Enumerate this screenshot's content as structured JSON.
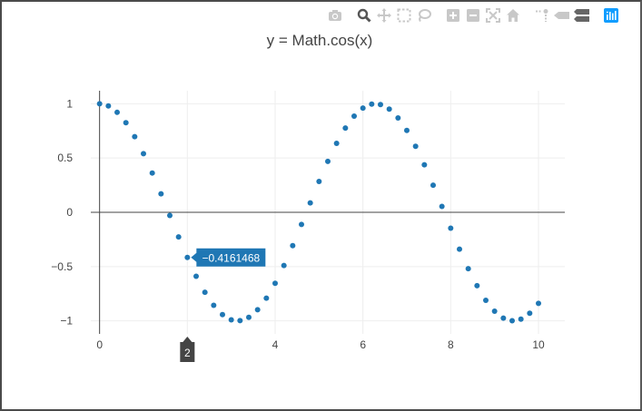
{
  "modebar": {
    "icons": [
      "camera-icon",
      "zoom-icon",
      "pan-icon",
      "box-select-icon",
      "lasso-select-icon",
      "zoom-in-icon",
      "zoom-out-icon",
      "autoscale-icon",
      "reset-axes-icon",
      "spike-lines-icon",
      "hover-closest-icon",
      "hover-compare-icon",
      "plotly-logo-icon"
    ],
    "active": "zoom-icon"
  },
  "colors": {
    "marker": "#1f77b4",
    "grid": "#eeeeee",
    "zeroline": "#444444",
    "hover_label_bg": "#1f77b4",
    "x_spike_label_bg": "#444444"
  },
  "hover": {
    "y_label": "−0.4161468",
    "x_label": "2",
    "point_x": 2
  },
  "chart_data": {
    "type": "scatter",
    "title": "y = Math.cos(x)",
    "xlabel": "",
    "ylabel": "",
    "xlim": [
      -0.2,
      10.6
    ],
    "ylim": [
      -1.12,
      1.12
    ],
    "x_ticks": [
      0,
      2,
      4,
      6,
      8,
      10
    ],
    "x_tick_labels": [
      "0",
      "2",
      "4",
      "6",
      "8",
      "10"
    ],
    "y_ticks": [
      1,
      0.5,
      0,
      -0.5,
      -1
    ],
    "y_tick_labels": [
      "1",
      "0.5",
      "0",
      "−0.5",
      "−1"
    ],
    "grid": true,
    "series": [
      {
        "x": [
          0,
          0.2,
          0.4,
          0.6,
          0.8,
          1,
          1.2,
          1.4,
          1.6,
          1.8,
          2,
          2.2,
          2.4,
          2.6,
          2.8,
          3,
          3.2,
          3.4,
          3.6,
          3.8,
          4,
          4.2,
          4.4,
          4.6,
          4.8,
          5,
          5.2,
          5.4,
          5.6,
          5.8,
          6,
          6.2,
          6.4,
          6.6,
          6.8,
          7,
          7.2,
          7.4,
          7.6,
          7.8,
          8,
          8.2,
          8.4,
          8.6,
          8.8,
          9,
          9.2,
          9.4,
          9.6,
          9.8,
          10
        ],
        "y": [
          1,
          0.98,
          0.921,
          0.825,
          0.697,
          0.54,
          0.362,
          0.17,
          -0.029,
          -0.227,
          -0.416,
          -0.589,
          -0.737,
          -0.857,
          -0.942,
          -0.99,
          -0.998,
          -0.967,
          -0.897,
          -0.791,
          -0.654,
          -0.49,
          -0.307,
          -0.112,
          0.087,
          0.284,
          0.469,
          0.635,
          0.776,
          0.886,
          0.96,
          0.997,
          0.993,
          0.951,
          0.869,
          0.754,
          0.608,
          0.438,
          0.25,
          0.054,
          -0.146,
          -0.34,
          -0.519,
          -0.676,
          -0.811,
          -0.911,
          -0.975,
          -0.999,
          -0.984,
          -0.93,
          -0.839
        ]
      }
    ]
  }
}
